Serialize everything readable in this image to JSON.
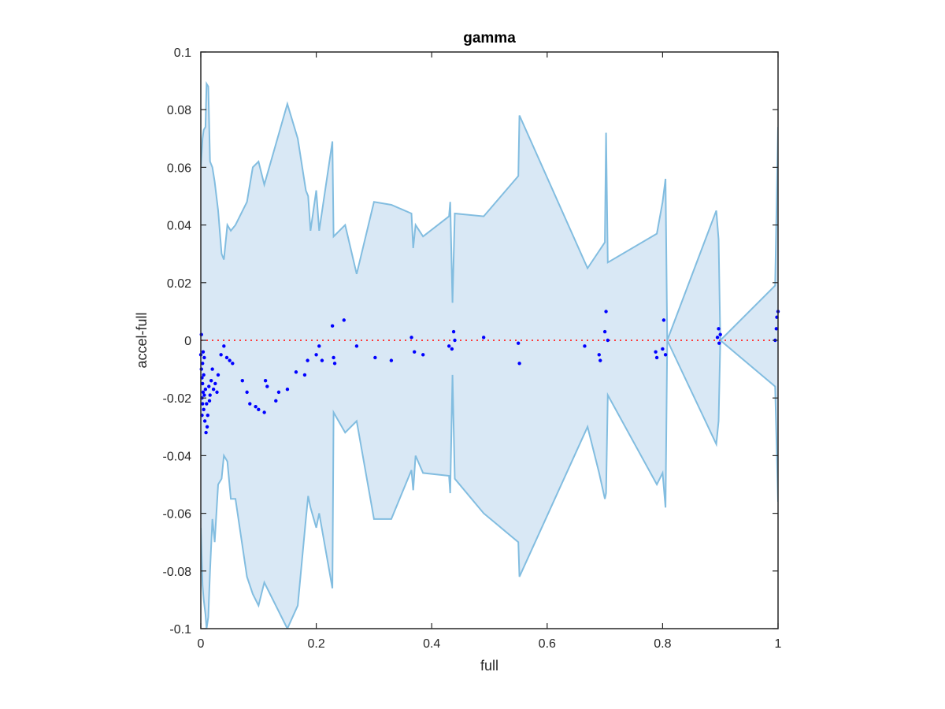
{
  "chart_data": {
    "type": "area",
    "title": "gamma",
    "xlabel": "full",
    "ylabel": "accel-full",
    "xlim": [
      0,
      1
    ],
    "ylim": [
      -0.1,
      0.1
    ],
    "xticks": [
      0,
      0.2,
      0.4,
      0.6,
      0.8,
      1
    ],
    "xtick_labels": [
      "0",
      "0.2",
      "0.4",
      "0.6",
      "0.8",
      "1"
    ],
    "yticks": [
      -0.1,
      -0.08,
      -0.06,
      -0.04,
      -0.02,
      0,
      0.02,
      0.04,
      0.06,
      0.08,
      0.1
    ],
    "ytick_labels": [
      "-0.1",
      "-0.08",
      "-0.06",
      "-0.04",
      "-0.02",
      "0",
      "0.02",
      "0.04",
      "0.06",
      "0.08",
      "0.1"
    ],
    "grid": false,
    "colors": {
      "band_fill": "#d9e8f5",
      "band_edge": "#82bde0",
      "points": "#0000ff",
      "zero_line": "#ff3b3b",
      "axis": "#262626"
    },
    "band": {
      "x": [
        0.0,
        0.003,
        0.005,
        0.008,
        0.01,
        0.013,
        0.016,
        0.02,
        0.024,
        0.03,
        0.036,
        0.04,
        0.046,
        0.052,
        0.06,
        0.08,
        0.09,
        0.1,
        0.11,
        0.15,
        0.168,
        0.182,
        0.186,
        0.19,
        0.2,
        0.205,
        0.228,
        0.23,
        0.25,
        0.27,
        0.3,
        0.33,
        0.365,
        0.368,
        0.372,
        0.385,
        0.43,
        0.432,
        0.436,
        0.44,
        0.49,
        0.55,
        0.552,
        0.67,
        0.69,
        0.7,
        0.702,
        0.705,
        0.79,
        0.8,
        0.805,
        0.808,
        0.893,
        0.897,
        0.9,
        0.995,
        1.0
      ],
      "upper": [
        0.06,
        0.07,
        0.073,
        0.074,
        0.089,
        0.088,
        0.062,
        0.06,
        0.055,
        0.045,
        0.03,
        0.028,
        0.04,
        0.038,
        0.04,
        0.048,
        0.06,
        0.062,
        0.054,
        0.082,
        0.07,
        0.052,
        0.05,
        0.038,
        0.052,
        0.038,
        0.069,
        0.036,
        0.04,
        0.023,
        0.048,
        0.047,
        0.044,
        0.032,
        0.04,
        0.036,
        0.043,
        0.048,
        0.013,
        0.044,
        0.043,
        0.057,
        0.078,
        0.025,
        0.031,
        0.034,
        0.072,
        0.027,
        0.037,
        0.048,
        0.056,
        0.0,
        0.045,
        0.035,
        0.0,
        0.019,
        0.074
      ],
      "lower": [
        -0.065,
        -0.085,
        -0.09,
        -0.095,
        -0.1,
        -0.096,
        -0.08,
        -0.062,
        -0.07,
        -0.05,
        -0.048,
        -0.04,
        -0.042,
        -0.055,
        -0.055,
        -0.082,
        -0.088,
        -0.092,
        -0.084,
        -0.1,
        -0.092,
        -0.062,
        -0.054,
        -0.058,
        -0.065,
        -0.06,
        -0.086,
        -0.025,
        -0.032,
        -0.028,
        -0.062,
        -0.062,
        -0.045,
        -0.052,
        -0.04,
        -0.046,
        -0.047,
        -0.053,
        -0.012,
        -0.048,
        -0.06,
        -0.07,
        -0.082,
        -0.03,
        -0.046,
        -0.055,
        -0.053,
        -0.019,
        -0.05,
        -0.046,
        -0.058,
        0.0,
        -0.036,
        -0.028,
        0.0,
        -0.016,
        -0.056
      ]
    },
    "scatter": {
      "x": [
        0.0,
        0.001,
        0.001,
        0.002,
        0.002,
        0.002,
        0.003,
        0.003,
        0.003,
        0.004,
        0.004,
        0.005,
        0.005,
        0.006,
        0.006,
        0.007,
        0.008,
        0.009,
        0.01,
        0.011,
        0.012,
        0.014,
        0.015,
        0.016,
        0.018,
        0.02,
        0.022,
        0.025,
        0.028,
        0.03,
        0.035,
        0.04,
        0.045,
        0.05,
        0.055,
        0.072,
        0.08,
        0.085,
        0.095,
        0.1,
        0.11,
        0.112,
        0.115,
        0.13,
        0.135,
        0.15,
        0.165,
        0.18,
        0.185,
        0.2,
        0.205,
        0.21,
        0.228,
        0.23,
        0.232,
        0.248,
        0.27,
        0.302,
        0.33,
        0.365,
        0.37,
        0.385,
        0.43,
        0.435,
        0.438,
        0.44,
        0.49,
        0.55,
        0.552,
        0.665,
        0.69,
        0.692,
        0.7,
        0.702,
        0.705,
        0.788,
        0.79,
        0.8,
        0.802,
        0.805,
        0.895,
        0.897,
        0.898,
        0.9,
        0.995,
        0.997,
        0.998,
        1.0
      ],
      "y": [
        -0.005,
        -0.01,
        0.002,
        -0.013,
        -0.02,
        -0.026,
        -0.008,
        -0.015,
        -0.022,
        -0.004,
        -0.018,
        -0.012,
        -0.024,
        -0.006,
        -0.019,
        -0.028,
        -0.017,
        -0.032,
        -0.022,
        -0.03,
        -0.026,
        -0.016,
        -0.021,
        -0.019,
        -0.014,
        -0.01,
        -0.017,
        -0.015,
        -0.018,
        -0.012,
        -0.005,
        -0.002,
        -0.006,
        -0.007,
        -0.008,
        -0.014,
        -0.018,
        -0.022,
        -0.023,
        -0.024,
        -0.025,
        -0.014,
        -0.016,
        -0.021,
        -0.018,
        -0.017,
        -0.011,
        -0.012,
        -0.007,
        -0.005,
        -0.002,
        -0.007,
        0.005,
        -0.006,
        -0.008,
        0.007,
        -0.002,
        -0.006,
        -0.007,
        0.001,
        -0.004,
        -0.005,
        -0.002,
        -0.003,
        0.003,
        0.0,
        0.001,
        -0.001,
        -0.008,
        -0.002,
        -0.005,
        -0.007,
        0.003,
        0.01,
        0.0,
        -0.004,
        -0.006,
        -0.003,
        0.007,
        -0.005,
        0.001,
        0.004,
        -0.001,
        0.002,
        0.0,
        0.004,
        0.008,
        0.01
      ]
    },
    "reference_line": {
      "y": 0,
      "style": "dotted"
    }
  }
}
